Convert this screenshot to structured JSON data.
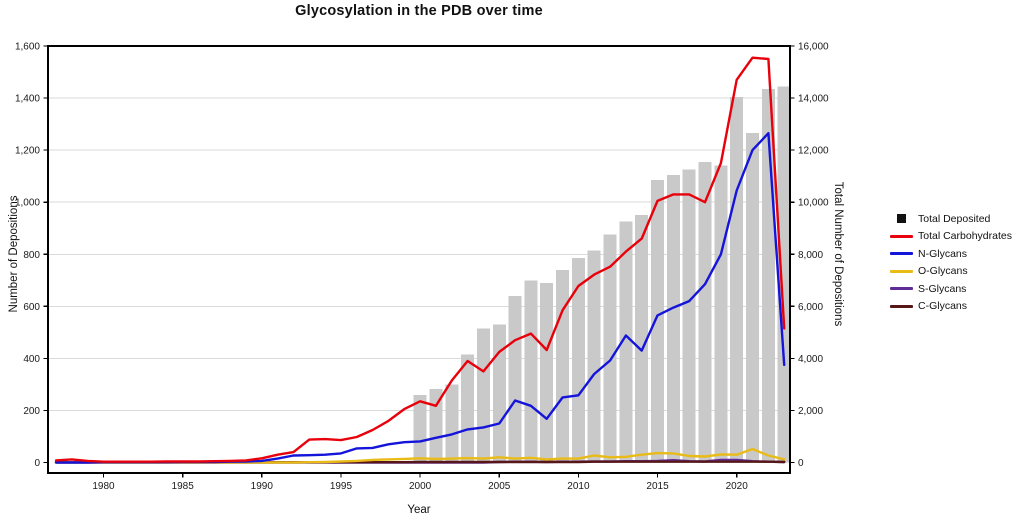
{
  "title": "Glycosylation in the PDB over time",
  "axes": {
    "x": {
      "label": "Year",
      "ticks": [
        1980,
        1985,
        1990,
        1995,
        2000,
        2005,
        2010,
        2015,
        2020
      ]
    },
    "left": {
      "label": "Number of Depositions",
      "ticks": [
        0,
        200,
        400,
        600,
        800,
        1000,
        1200,
        1400,
        1600
      ]
    },
    "right": {
      "label": "Total Number of Depositions",
      "ticks": [
        0,
        2000,
        4000,
        6000,
        8000,
        10000,
        12000,
        14000,
        16000
      ]
    }
  },
  "legend": {
    "items": [
      {
        "label": "Total Deposited",
        "color": "#111111",
        "marker": "square"
      },
      {
        "label": "Total Carbohydrates",
        "color": "#e8000b",
        "marker": "line"
      },
      {
        "label": "N-Glycans",
        "color": "#1414db",
        "marker": "line"
      },
      {
        "label": "O-Glycans",
        "color": "#e9bb17",
        "marker": "line"
      },
      {
        "label": "S-Glycans",
        "color": "#5e2b97",
        "marker": "line"
      },
      {
        "label": "C-Glycans",
        "color": "#571717",
        "marker": "line"
      }
    ]
  },
  "colors": {
    "bars": "#c9c9c9",
    "grid": "#dadada",
    "frame": "#000000",
    "tick_text": "#1a1a1a"
  },
  "chart_data": {
    "type": "bar+line",
    "title": "Glycosylation in the PDB over time",
    "xlabel": "Year",
    "ylabel_left": "Number of Depositions",
    "ylabel_right": "Total Number of Depositions",
    "grid": true,
    "legend_position": "right-outside",
    "axis_ranges": {
      "x": [
        1976.5,
        2023.4
      ],
      "left": [
        -40,
        1600
      ],
      "right": [
        -400,
        16000
      ]
    },
    "x": [
      1977,
      1978,
      1979,
      1980,
      1981,
      1982,
      1983,
      1984,
      1985,
      1986,
      1987,
      1988,
      1989,
      1990,
      1991,
      1992,
      1993,
      1994,
      1995,
      1996,
      1997,
      1998,
      1999,
      2000,
      2001,
      2002,
      2003,
      2004,
      2005,
      2006,
      2007,
      2008,
      2009,
      2010,
      2011,
      2012,
      2013,
      2014,
      2015,
      2016,
      2017,
      2018,
      2019,
      2020,
      2021,
      2022,
      2023
    ],
    "bars": {
      "name": "Total Deposited",
      "axis": "right",
      "color": "#c9c9c9",
      "years": [
        2000,
        2001,
        2002,
        2003,
        2004,
        2005,
        2006,
        2007,
        2008,
        2009,
        2010,
        2011,
        2012,
        2013,
        2014,
        2015,
        2016,
        2017,
        2018,
        2019,
        2020,
        2021,
        2022,
        2023
      ],
      "values": [
        2600,
        2830,
        3000,
        4150,
        5150,
        5300,
        6400,
        7000,
        6900,
        7400,
        7850,
        8150,
        8750,
        9250,
        9500,
        10850,
        11050,
        11250,
        11550,
        11400,
        14050,
        12650,
        14350,
        14450
      ]
    },
    "series": [
      {
        "name": "S-Glycans",
        "axis": "left",
        "color": "#5e2b97",
        "values": [
          0,
          0,
          0,
          0,
          0,
          0,
          0,
          0,
          0,
          0,
          0,
          0,
          0,
          0,
          0,
          0,
          0,
          0,
          0,
          0,
          0,
          0,
          0,
          0,
          0,
          0,
          0,
          0,
          2,
          3,
          3,
          2,
          3,
          3,
          4,
          4,
          5,
          5,
          6,
          9,
          5,
          4,
          10,
          10,
          5,
          3,
          2
        ]
      },
      {
        "name": "C-Glycans",
        "axis": "left",
        "color": "#571717",
        "values": [
          1,
          1,
          1,
          1,
          1,
          1,
          1,
          1,
          1,
          1,
          1,
          1,
          1,
          1,
          1,
          1,
          1,
          1,
          1,
          1,
          1,
          1,
          1,
          2,
          2,
          2,
          2,
          2,
          2,
          2,
          2,
          2,
          2,
          2,
          3,
          3,
          3,
          3,
          3,
          3,
          3,
          3,
          3,
          3,
          3,
          3,
          2
        ]
      },
      {
        "name": "O-Glycans",
        "axis": "left",
        "color": "#e9bb17",
        "values": [
          0,
          0,
          0,
          0,
          0,
          0,
          0,
          0,
          0,
          0,
          0,
          0,
          0,
          0,
          0,
          0,
          1,
          2,
          4,
          6,
          10,
          12,
          14,
          16,
          14,
          15,
          17,
          15,
          20,
          15,
          18,
          12,
          15,
          15,
          27,
          20,
          22,
          30,
          36,
          35,
          25,
          23,
          31,
          30,
          52,
          27,
          12
        ]
      },
      {
        "name": "N-Glycans",
        "axis": "left",
        "color": "#1414db",
        "values": [
          0,
          0,
          0,
          1,
          1,
          1,
          1,
          1,
          2,
          2,
          2,
          3,
          4,
          6,
          15,
          27,
          28,
          30,
          35,
          54,
          56,
          70,
          78,
          81,
          95,
          108,
          127,
          135,
          150,
          238,
          218,
          168,
          250,
          258,
          340,
          392,
          488,
          430,
          565,
          595,
          620,
          685,
          800,
          1045,
          1200,
          1265,
          375
        ]
      },
      {
        "name": "Total Carbohydrates",
        "axis": "left",
        "color": "#e8000b",
        "values": [
          8,
          12,
          6,
          3,
          3,
          3,
          3,
          4,
          4,
          4,
          5,
          6,
          8,
          16,
          30,
          40,
          88,
          90,
          86,
          98,
          125,
          160,
          205,
          235,
          218,
          315,
          390,
          350,
          425,
          470,
          495,
          432,
          585,
          678,
          722,
          752,
          810,
          860,
          1005,
          1030,
          1030,
          1000,
          1150,
          1470,
          1555,
          1550,
          515
        ]
      }
    ]
  }
}
